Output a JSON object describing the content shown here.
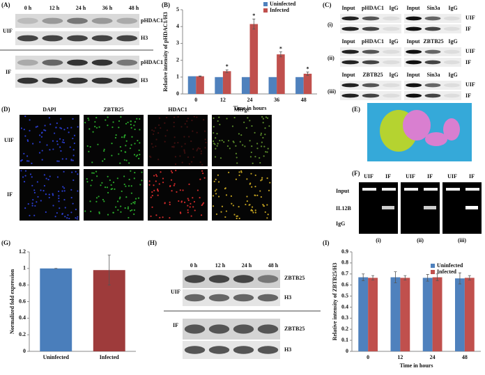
{
  "panel_labels": [
    "(A)",
    "(B)",
    "(C)",
    "(D)",
    "(E)",
    "(F)",
    "(G)",
    "(H)",
    "(I)"
  ],
  "blot_a": {
    "times": [
      "0 h",
      "12 h",
      "24 h",
      "36 h",
      "48 h"
    ],
    "uif_labels": [
      "pHDAC1",
      "H3"
    ],
    "if_labels": [
      "pHDAC1",
      "H3"
    ],
    "groups": [
      "UIF",
      "IF"
    ]
  },
  "blot_c": {
    "rows": [
      {
        "numeral": "(i)",
        "left": [
          "Input",
          "pHDAC1",
          "IgG"
        ],
        "right": [
          "Input",
          "Sin3a",
          "IgG"
        ]
      },
      {
        "numeral": "(ii)",
        "left": [
          "Input",
          "pHDAC1",
          "IgG"
        ],
        "right": [
          "Input",
          "ZBTB25",
          "IgG"
        ]
      },
      {
        "numeral": "(iii)",
        "left": [
          "Input",
          "ZBTB25",
          "IgG"
        ],
        "right": [
          "Input",
          "Sin3a",
          "IgG"
        ]
      }
    ],
    "groups": [
      "UIF",
      "IF"
    ]
  },
  "microscopy": {
    "channels": [
      "DAPI",
      "ZBTB25",
      "HDAC1",
      "Merge"
    ],
    "rows": [
      "UIF",
      "IF"
    ]
  },
  "gel_f": {
    "columns": [
      "UIF",
      "IF"
    ],
    "rows": [
      "Input",
      "IL12B",
      "IgG"
    ],
    "groups": [
      "(i)",
      "(ii)",
      "(iii)"
    ]
  },
  "blot_h": {
    "times": [
      "0 h",
      "12 h",
      "24 h",
      "48 h"
    ],
    "uif_labels": [
      "ZBTB25",
      "H3"
    ],
    "if_labels": [
      "ZBTB25",
      "H3"
    ],
    "groups": [
      "UIF",
      "IF"
    ]
  },
  "chart_data": [
    {
      "type": "bar",
      "y_label": "Relative intensity of pHDAC1/H3",
      "x_label": "Time in hours",
      "categories": [
        "0",
        "12",
        "24",
        "36",
        "48"
      ],
      "series": [
        {
          "name": "Uninfected",
          "color": "#4f81bd",
          "values": [
            1.05,
            1.0,
            1.0,
            1.0,
            1.0
          ]
        },
        {
          "name": "Infected",
          "color": "#c0504d",
          "values": [
            1.05,
            1.35,
            4.15,
            2.35,
            1.2
          ],
          "errors": [
            0.02,
            0.08,
            0.3,
            0.15,
            0.1
          ]
        }
      ],
      "annotations": [
        null,
        "*",
        "*",
        "*",
        "*"
      ],
      "ylim": [
        0,
        5
      ],
      "yticks": [
        0,
        1,
        2,
        3,
        4,
        5
      ],
      "legend": "upper right"
    },
    {
      "type": "bar",
      "y_label": "Normalized fold expression",
      "categories": [
        "Uninfected",
        "Infected"
      ],
      "values": [
        1.0,
        0.98
      ],
      "errors": [
        0,
        0.18
      ],
      "colors": [
        "#4a7ebb",
        "#9e3b3b"
      ],
      "ylim": [
        0,
        1.2
      ],
      "yticks": [
        0,
        0.2,
        0.4,
        0.6,
        0.8,
        1,
        1.2
      ]
    },
    {
      "type": "bar",
      "y_label": "Relative intensity of ZBTB25/H3",
      "x_label": "Time in hours",
      "categories": [
        "0",
        "12",
        "24",
        "48"
      ],
      "series": [
        {
          "name": "Uninfected",
          "color": "#4f81bd",
          "values": [
            0.67,
            0.67,
            0.665,
            0.66
          ],
          "errors": [
            0.03,
            0.05,
            0.03,
            0.05
          ]
        },
        {
          "name": "Infected",
          "color": "#c0504d",
          "values": [
            0.665,
            0.665,
            0.67,
            0.665
          ],
          "errors": [
            0.02,
            0.02,
            0.03,
            0.02
          ]
        }
      ],
      "ylim": [
        0,
        0.9
      ],
      "yticks": [
        0,
        0.1,
        0.2,
        0.3,
        0.4,
        0.5,
        0.6,
        0.7,
        0.8,
        0.9
      ],
      "legend": "upper right"
    }
  ]
}
